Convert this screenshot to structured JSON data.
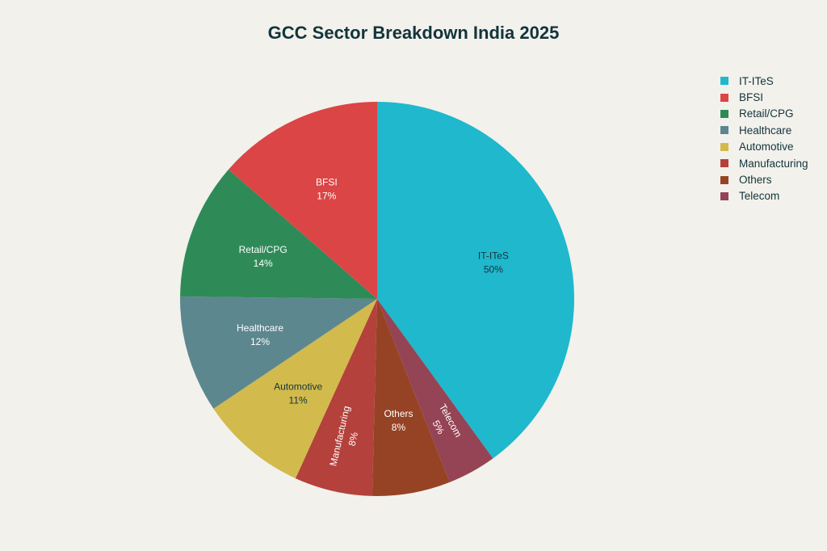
{
  "chart_data": {
    "type": "pie",
    "title": "GCC Sector Breakdown India 2025",
    "slices": [
      {
        "label": "IT-ITeS",
        "value": 50,
        "value_label": "50%",
        "color": "#1fb8cd",
        "text_color": "#13343b",
        "rotated": false
      },
      {
        "label": "Telecom",
        "value": 5,
        "value_label": "5%",
        "color": "#944454",
        "text_color": "#ffffff",
        "rotated": true
      },
      {
        "label": "Others",
        "value": 8,
        "value_label": "8%",
        "color": "#964325",
        "text_color": "#ffffff",
        "rotated": false
      },
      {
        "label": "Manufacturing",
        "value": 8,
        "value_label": "8%",
        "color": "#b4413c",
        "text_color": "#ffffff",
        "rotated": true
      },
      {
        "label": "Automotive",
        "value": 11,
        "value_label": "11%",
        "color": "#d2ba4c",
        "text_color": "#13343b",
        "rotated": false
      },
      {
        "label": "Healthcare",
        "value": 12,
        "value_label": "12%",
        "color": "#5d878f",
        "text_color": "#ffffff",
        "rotated": false
      },
      {
        "label": "Retail/CPG",
        "value": 14,
        "value_label": "14%",
        "color": "#2e8b57",
        "text_color": "#ffffff",
        "rotated": false
      },
      {
        "label": "BFSI",
        "value": 17,
        "value_label": "17%",
        "color": "#db4545",
        "text_color": "#ffffff",
        "rotated": false
      }
    ],
    "legend": {
      "placement": "right",
      "items": [
        {
          "label": "IT-ITeS",
          "color": "#1fb8cd"
        },
        {
          "label": "BFSI",
          "color": "#db4545"
        },
        {
          "label": "Retail/CPG",
          "color": "#2e8b57"
        },
        {
          "label": "Healthcare",
          "color": "#5d878f"
        },
        {
          "label": "Automotive",
          "color": "#d2ba4c"
        },
        {
          "label": "Manufacturing",
          "color": "#b4413c"
        },
        {
          "label": "Others",
          "color": "#964325"
        },
        {
          "label": "Telecom",
          "color": "#944454"
        }
      ]
    }
  }
}
